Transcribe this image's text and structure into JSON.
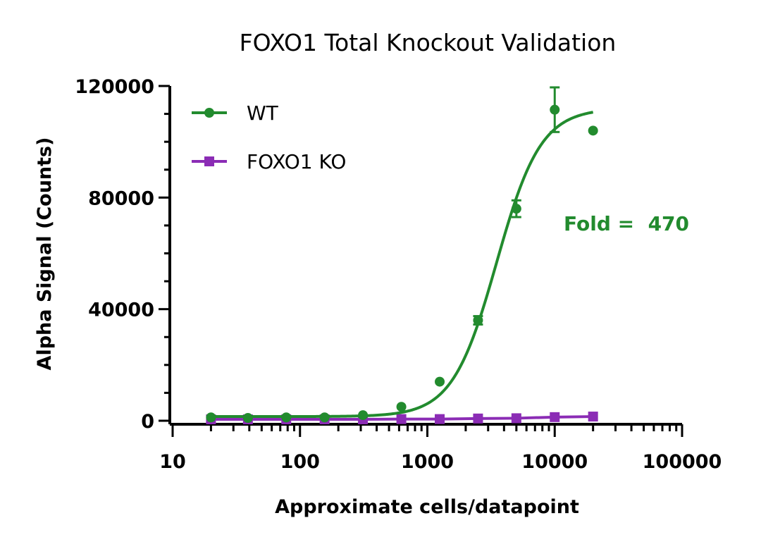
{
  "chart_data": {
    "type": "scatter",
    "title": "FOXO1 Total Knockout Validation",
    "xlabel": "Approximate cells/datapoint",
    "ylabel": "Alpha Signal (Counts)",
    "xscale": "log",
    "xlim": [
      10,
      100000
    ],
    "ylim": [
      0,
      120000
    ],
    "xticks": [
      "10",
      "100",
      "1000",
      "10000",
      "100000"
    ],
    "yticks": [
      "0",
      "40000",
      "80000",
      "120000"
    ],
    "legend_position": "top-left",
    "annotation": "Fold =  470",
    "series": [
      {
        "name": "WT",
        "color": "#228B2E",
        "marker": "circle",
        "x": [
          20,
          39,
          78,
          156,
          312,
          625,
          1250,
          2500,
          5000,
          10000,
          20000
        ],
        "y": [
          1200,
          1000,
          1200,
          1200,
          2000,
          5000,
          14000,
          36000,
          76000,
          111500,
          104000
        ],
        "err": [
          0,
          0,
          0,
          0,
          0,
          0,
          0,
          1500,
          3000,
          8000,
          0
        ],
        "fit": {
          "bottom": 1500,
          "top": 112000,
          "ec50": 3500,
          "hill": 2.5
        }
      },
      {
        "name": "FOXO1 KO",
        "color": "#8B2CB5",
        "marker": "square",
        "x": [
          20,
          39,
          78,
          156,
          312,
          625,
          1250,
          2500,
          5000,
          10000,
          20000
        ],
        "y": [
          500,
          500,
          500,
          500,
          500,
          600,
          600,
          800,
          900,
          1300,
          1500
        ],
        "err": [
          0,
          0,
          0,
          0,
          0,
          0,
          0,
          0,
          0,
          0,
          0
        ]
      }
    ]
  }
}
